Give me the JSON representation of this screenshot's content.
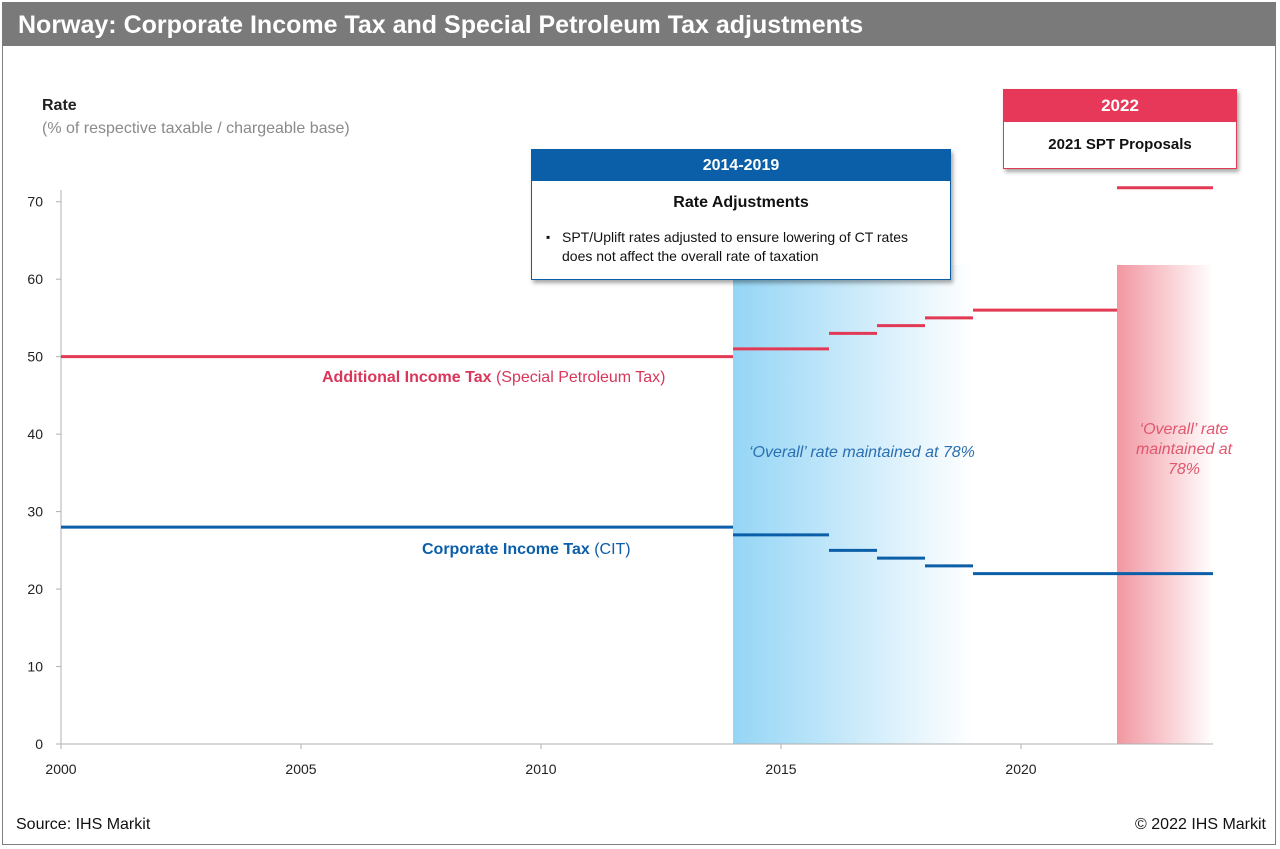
{
  "header": {
    "title": "Norway: Corporate Income Tax and Special Petroleum Tax adjustments"
  },
  "footer": {
    "source": "Source: IHS Markit",
    "copyright": "© 2022 IHS Markit"
  },
  "colors": {
    "ait": "#e23a55",
    "cit": "#0b5ea8",
    "title_bar": "#7a7a7a",
    "axis": "#b0b0b0"
  },
  "callouts": {
    "blue": {
      "period": "2014-2019",
      "title": "Rate Adjustments",
      "bullet": "SPT/Uplift rates adjusted to ensure lowering of CT rates does not affect the overall rate of taxation"
    },
    "red": {
      "period": "2022",
      "title": "2021 SPT Proposals"
    }
  },
  "annotations": {
    "ait_label_bold": "Additional Income Tax",
    "ait_label_rest": " (Special Petroleum Tax)",
    "cit_label_bold": "Corporate Income Tax",
    "cit_label_rest": " (CIT)",
    "overall_blue": "‘Overall’ rate maintained at 78%",
    "overall_red": "‘Overall’ rate maintained at 78%"
  },
  "chart_data": {
    "type": "line",
    "title": "Norway: Corporate Income Tax and Special Petroleum Tax adjustments",
    "ylabel": "Rate",
    "ylabel_sub": "(% of respective taxable / chargeable base)",
    "xlabel": "",
    "xlim": [
      2000,
      2024
    ],
    "ylim": [
      0,
      75
    ],
    "x_ticks": [
      2000,
      2005,
      2010,
      2015,
      2020
    ],
    "y_ticks": [
      0,
      10,
      20,
      30,
      40,
      50,
      60,
      70
    ],
    "shaded_regions": [
      {
        "name": "2014-2019 rate adjustments",
        "from": 2014,
        "to": 2019,
        "color": "#9fd8f5"
      },
      {
        "name": "2022 SPT proposals",
        "from": 2022,
        "to": 2024,
        "color": "#f2a0a8"
      }
    ],
    "series": [
      {
        "name": "Additional Income Tax (Special Petroleum Tax)",
        "color": "#e23a55",
        "steps": [
          {
            "from": 2000,
            "to": 2014,
            "value": 50
          },
          {
            "from": 2014,
            "to": 2016,
            "value": 51
          },
          {
            "from": 2016,
            "to": 2017,
            "value": 53
          },
          {
            "from": 2017,
            "to": 2018,
            "value": 54
          },
          {
            "from": 2018,
            "to": 2019,
            "value": 55
          },
          {
            "from": 2019,
            "to": 2022,
            "value": 56
          },
          {
            "from": 2022,
            "to": 2024,
            "value": 71.8
          }
        ]
      },
      {
        "name": "Corporate Income Tax (CIT)",
        "color": "#0b5ea8",
        "steps": [
          {
            "from": 2000,
            "to": 2014,
            "value": 28
          },
          {
            "from": 2014,
            "to": 2016,
            "value": 27
          },
          {
            "from": 2016,
            "to": 2017,
            "value": 25
          },
          {
            "from": 2017,
            "to": 2018,
            "value": 24
          },
          {
            "from": 2018,
            "to": 2019,
            "value": 23
          },
          {
            "from": 2019,
            "to": 2024,
            "value": 22
          }
        ]
      }
    ]
  }
}
